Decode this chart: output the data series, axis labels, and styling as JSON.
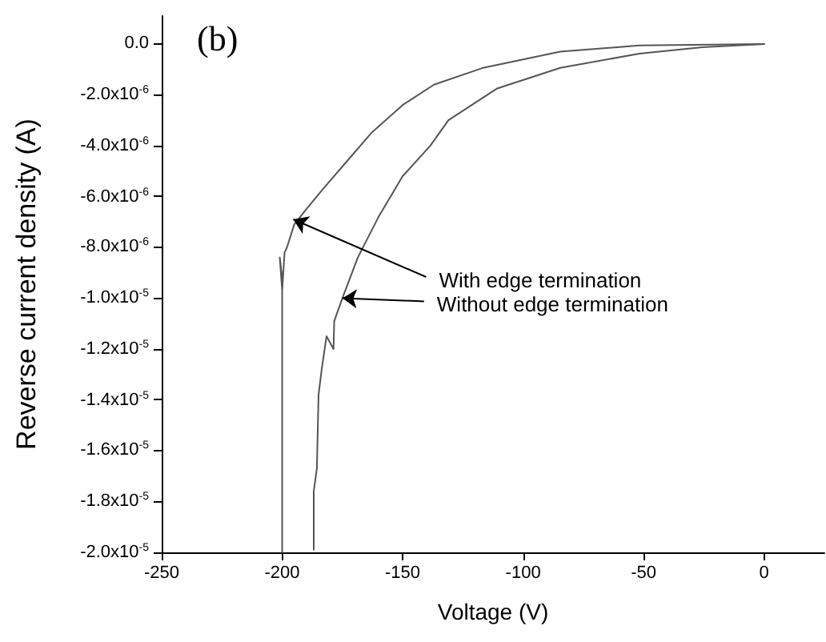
{
  "chart_data": {
    "type": "line",
    "title": "(b)",
    "xlabel": "Voltage (V)",
    "ylabel": "Reverse current density (A)",
    "xlim": [
      -250,
      25
    ],
    "xticks": [
      -250,
      -200,
      -150,
      -100,
      -50,
      0
    ],
    "ylim": [
      -2e-05,
      1.1e-06
    ],
    "yticks": [
      {
        "value": 0,
        "label": "0.0"
      },
      {
        "value": -2e-06,
        "label": "-2.0x10$^{-6}$"
      },
      {
        "value": -4e-06,
        "label": "-4.0x10$^{-6}$"
      },
      {
        "value": -6e-06,
        "label": "-6.0x10$^{-6}$"
      },
      {
        "value": -8e-06,
        "label": "-8.0x10$^{-6}$"
      },
      {
        "value": -1e-05,
        "label": "-1.0x10$^{-5}$"
      },
      {
        "value": -1.2e-05,
        "label": "-1.2x10$^{-5}$"
      },
      {
        "value": -1.4e-05,
        "label": "-1.4x10$^{-5}$"
      },
      {
        "value": -1.6e-05,
        "label": "-1.6x10$^{-5}$"
      },
      {
        "value": -1.8e-05,
        "label": "-1.8x10$^{-5}$"
      },
      {
        "value": -2e-05,
        "label": "-2.0x10$^{-5}$"
      }
    ],
    "grid": false,
    "marker": "none",
    "line_style": "solid",
    "series": [
      {
        "color": "#555555",
        "x": [
          0,
          -51.8,
          -84.6,
          -117,
          -137,
          -150,
          -163,
          -173,
          -183,
          -190,
          -195,
          -198,
          -199,
          -200,
          -201,
          -200,
          -200
        ],
        "values": [
          0,
          -6e-08,
          -3e-07,
          -9.5e-07,
          -1.6e-06,
          -2.4e-06,
          -3.5e-06,
          -4.6e-06,
          -5.7e-06,
          -6.5e-06,
          -7.1e-06,
          -8e-06,
          -8.2e-06,
          -9.7e-06,
          -8.4e-06,
          -9.2e-06,
          -2e-05
        ]
      },
      {
        "color": "#555555",
        "x": [
          0,
          -25.6,
          -51.8,
          -84.6,
          -111,
          -131,
          -138.5,
          -150,
          -160,
          -168.6,
          -175,
          -178.4,
          -178.7,
          -181.6,
          -183.6,
          -184.9,
          -185.6,
          -186.9,
          -186.9
        ],
        "values": [
          0,
          -1.3e-07,
          -3.8e-07,
          -9.4e-07,
          -1.76e-06,
          -3e-06,
          -4e-06,
          -5.2e-06,
          -6.8e-06,
          -8.4e-06,
          -1e-05,
          -1.09e-05,
          -1.2e-05,
          -1.15e-05,
          -1.28e-05,
          -1.38e-05,
          -1.67e-05,
          -1.76e-05,
          -1.99e-05
        ]
      }
    ],
    "annotations": [
      {
        "text": "With edge termination",
        "x": -195.4,
        "y": -6.9e-06
      },
      {
        "text": "Without edge termination",
        "x": -175,
        "y": -1e-05
      }
    ]
  }
}
